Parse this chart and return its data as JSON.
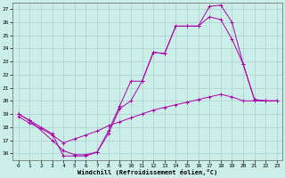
{
  "title": "",
  "xlabel": "Windchill (Refroidissement éolien,°C)",
  "bg_color": "#cceee8",
  "grid_color": "#aacccc",
  "line_color": "#aa00aa",
  "xlim": [
    -0.5,
    23.5
  ],
  "ylim": [
    15.5,
    27.5
  ],
  "xticks": [
    0,
    1,
    2,
    3,
    4,
    5,
    6,
    7,
    8,
    9,
    10,
    11,
    12,
    13,
    14,
    15,
    16,
    17,
    18,
    19,
    20,
    21,
    22,
    23
  ],
  "yticks": [
    16,
    17,
    18,
    19,
    20,
    21,
    22,
    23,
    24,
    25,
    26,
    27
  ],
  "line1_x": [
    0,
    1,
    3,
    4,
    5,
    6,
    7,
    8,
    9,
    10,
    11,
    12,
    13,
    14,
    15,
    16,
    17,
    18,
    19,
    20,
    21,
    22,
    23
  ],
  "line1_y": [
    19,
    18.5,
    17.5,
    15.8,
    15.8,
    15.8,
    16.1,
    17.7,
    19.6,
    21.5,
    21.5,
    23.7,
    23.6,
    25.7,
    25.7,
    25.7,
    27.2,
    27.3,
    26.0,
    22.8,
    20.1,
    20.0,
    20.0
  ],
  "line2_x": [
    0,
    1,
    3,
    4,
    5,
    6,
    7,
    8,
    9,
    10,
    11,
    12,
    13,
    14,
    15,
    16,
    17,
    18,
    19,
    20,
    21,
    22,
    23
  ],
  "line2_y": [
    19,
    18.5,
    17.0,
    16.2,
    15.9,
    15.9,
    16.1,
    17.5,
    19.4,
    20.0,
    21.5,
    23.7,
    23.6,
    25.7,
    25.7,
    25.7,
    26.4,
    26.2,
    24.7,
    22.8,
    20.1,
    20.0,
    20.0
  ],
  "line3_x": [
    0,
    1,
    2,
    3,
    4,
    5,
    6,
    7,
    8,
    9,
    10,
    11,
    12,
    13,
    14,
    15,
    16,
    17,
    18,
    19,
    20,
    21,
    22,
    23
  ],
  "line3_y": [
    18.8,
    18.3,
    17.9,
    17.4,
    16.8,
    17.1,
    17.4,
    17.7,
    18.1,
    18.4,
    18.7,
    19.0,
    19.3,
    19.5,
    19.7,
    19.9,
    20.1,
    20.3,
    20.5,
    20.3,
    20.0,
    20.0,
    20.0,
    20.0
  ]
}
